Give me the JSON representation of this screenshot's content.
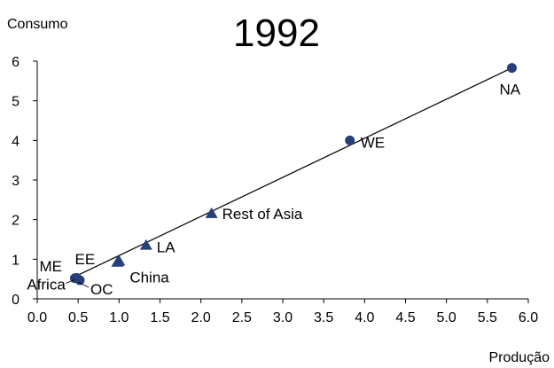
{
  "chart_data": {
    "type": "scatter",
    "title": "1992",
    "xlabel": "Produção",
    "ylabel": "Consumo",
    "xlim": [
      0,
      6
    ],
    "ylim": [
      0,
      6
    ],
    "x_ticks": [
      "0.0",
      "0.5",
      "1.0",
      "1.5",
      "2.0",
      "2.5",
      "3.0",
      "3.5",
      "4.0",
      "4.5",
      "5.0",
      "5.5",
      "6.0"
    ],
    "y_ticks": [
      "0",
      "1",
      "2",
      "3",
      "4",
      "5",
      "6"
    ],
    "grid": false,
    "marker_color": "#263f78",
    "line_color": "#000000",
    "trendline": {
      "x1": 0.5,
      "y1": 0.6,
      "x2": 5.8,
      "y2": 5.83
    },
    "points": [
      {
        "label": "Africa",
        "x": 0.48,
        "y": 0.53,
        "marker": "circle"
      },
      {
        "label": "ME",
        "x": 0.46,
        "y": 0.52,
        "marker": "circle"
      },
      {
        "label": "OC",
        "x": 0.52,
        "y": 0.47,
        "marker": "circle"
      },
      {
        "label": "EE",
        "x": 0.98,
        "y": 0.92,
        "marker": "triangle"
      },
      {
        "label": "China",
        "x": 1.0,
        "y": 0.95,
        "marker": "triangle"
      },
      {
        "label": "LA",
        "x": 1.33,
        "y": 1.35,
        "marker": "triangle"
      },
      {
        "label": "Rest of Asia",
        "x": 2.13,
        "y": 2.15,
        "marker": "triangle"
      },
      {
        "label": "WE",
        "x": 3.82,
        "y": 4.0,
        "marker": "circle"
      },
      {
        "label": "NA",
        "x": 5.8,
        "y": 5.83,
        "marker": "circle"
      }
    ]
  }
}
